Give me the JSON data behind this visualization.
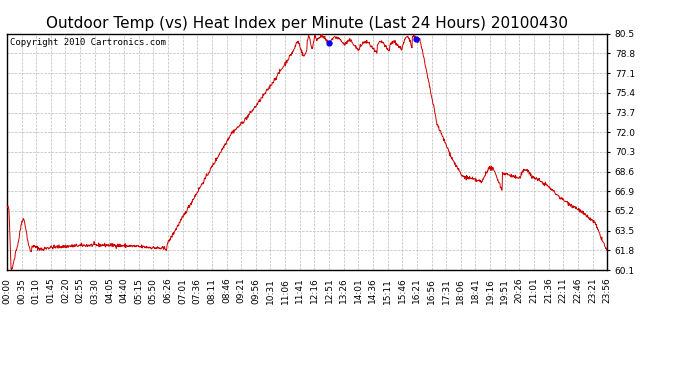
{
  "title": "Outdoor Temp (vs) Heat Index per Minute (Last 24 Hours) 20100430",
  "copyright": "Copyright 2010 Cartronics.com",
  "line_color": "#cc0000",
  "marker_color": "#0000ff",
  "background_color": "#ffffff",
  "grid_color": "#aaaaaa",
  "ylim": [
    60.1,
    80.5
  ],
  "yticks": [
    60.1,
    61.8,
    63.5,
    65.2,
    66.9,
    68.6,
    70.3,
    72.0,
    73.7,
    75.4,
    77.1,
    78.8,
    80.5
  ],
  "xtick_labels": [
    "00:00",
    "00:35",
    "01:10",
    "01:45",
    "02:20",
    "02:55",
    "03:30",
    "04:05",
    "04:40",
    "05:15",
    "05:50",
    "06:26",
    "07:01",
    "07:36",
    "08:11",
    "08:46",
    "09:21",
    "09:56",
    "10:31",
    "11:06",
    "11:41",
    "12:16",
    "12:51",
    "13:26",
    "14:01",
    "14:36",
    "15:11",
    "15:46",
    "16:21",
    "16:56",
    "17:31",
    "18:06",
    "18:41",
    "19:16",
    "19:51",
    "20:26",
    "21:01",
    "21:36",
    "22:11",
    "22:46",
    "23:21",
    "23:56"
  ],
  "title_fontsize": 11,
  "copyright_fontsize": 6.5,
  "tick_fontsize": 6.5
}
